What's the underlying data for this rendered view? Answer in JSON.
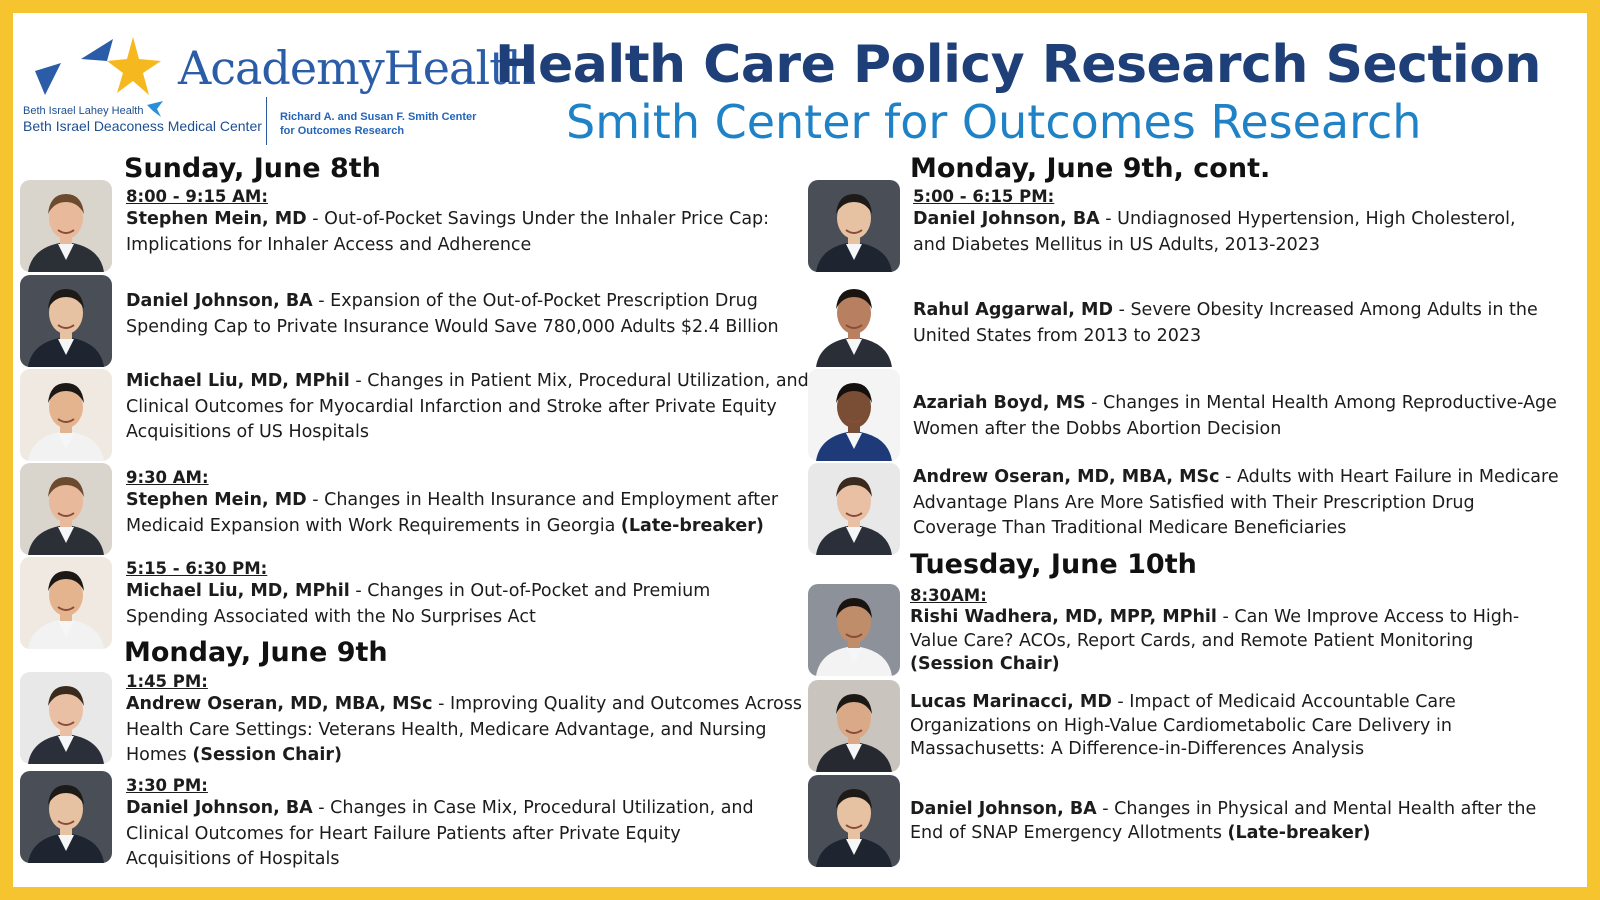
{
  "header": {
    "org_logo": "AcademyHealth",
    "hospital_line1": "Beth Israel Lahey Health",
    "hospital_line2": "Beth Israel Deaconess Medical Center",
    "center_logo_line1": "Richard A. and Susan F. Smith Center",
    "center_logo_line2": "for Outcomes Research",
    "title": "Health Care Policy Research Section",
    "subtitle": "Smith Center for Outcomes Research"
  },
  "colors": {
    "border": "#f6c42e",
    "title": "#1e3f78",
    "subtitle": "#1f82c7",
    "logo_blue": "#2b5ca8",
    "logo_gold": "#f6b81f"
  },
  "days": {
    "sun": "Sunday, June 8th",
    "mon": "Monday, June 9th",
    "mon_cont": "Monday, June 9th, cont.",
    "tue": "Tuesday, June 10th"
  },
  "entries": [
    {
      "time": "8:00 - 9:15 AM:",
      "name": "Stephen Mein, MD",
      "title": " - Out-of-Pocket Savings Under the Inhaler Price Cap: Implications for Inhaler Access and Adherence",
      "tag": ""
    },
    {
      "time": "",
      "name": "Daniel Johnson, BA",
      "title": " - Expansion of the Out-of-Pocket Prescription Drug Spending Cap to Private Insurance Would Save 780,000 Adults $2.4 Billion",
      "tag": ""
    },
    {
      "time": "",
      "name": "Michael Liu, MD, MPhil",
      "title": " - Changes in Patient Mix, Procedural Utilization, and Clinical Outcomes for Myocardial Infarction and Stroke after Private Equity Acquisitions of US Hospitals",
      "tag": ""
    },
    {
      "time": "9:30 AM:",
      "name": "Stephen Mein, MD",
      "title": " - Changes in Health Insurance and Employment after Medicaid Expansion with Work Requirements in Georgia ",
      "tag": "(Late-breaker)"
    },
    {
      "time": "5:15 - 6:30 PM:",
      "name": "Michael Liu, MD,  MPhil",
      "title": " - Changes in Out-of-Pocket and Premium Spending Associated with the No Surprises Act",
      "tag": ""
    },
    {
      "time": "1:45 PM:",
      "name": "Andrew Oseran, MD, MBA, MSc",
      "title": " - Improving Quality and Outcomes Across Health Care Settings: Veterans Health, Medicare Advantage, and Nursing Homes ",
      "tag": "(Session Chair)"
    },
    {
      "time": "3:30 PM:",
      "name": "Daniel Johnson, BA",
      "title": " - Changes in Case Mix, Procedural Utilization, and Clinical Outcomes for Heart Failure Patients after Private Equity Acquisitions of Hospitals",
      "tag": ""
    },
    {
      "time": "5:00 - 6:15 PM:",
      "name": "Daniel Johnson, BA",
      "title": " - Undiagnosed Hypertension, High Cholesterol, and Diabetes Mellitus in US Adults, 2013-2023",
      "tag": ""
    },
    {
      "time": "",
      "name": "Rahul Aggarwal, MD",
      "title": " - Severe Obesity Increased Among Adults in the United States from 2013 to 2023",
      "tag": ""
    },
    {
      "time": "",
      "name": "Azariah Boyd, MS",
      "title": " - Changes in Mental Health Among Reproductive-Age Women after the Dobbs Abortion Decision",
      "tag": ""
    },
    {
      "time": "",
      "name": "Andrew Oseran, MD, MBA, MSc",
      "title": " - Adults with Heart Failure in Medicare Advantage Plans Are More Satisfied with Their Prescription Drug Coverage Than Traditional Medicare Beneficiaries",
      "tag": ""
    },
    {
      "time": "8:30AM: ",
      "name": "Rishi Wadhera, MD, MPP, MPhil",
      "title": " - Can We Improve Access to High-Value Care? ACOs, Report Cards, and Remote Patient Monitoring ",
      "tag": "(Session Chair)"
    },
    {
      "time": "",
      "name": "Lucas Marinacci, MD",
      "title": " - Impact of Medicaid Accountable Care Organizations on High-Value Cardiometabolic Care Delivery in Massachusetts: A Difference-in-Differences Analysis",
      "tag": ""
    },
    {
      "time": "",
      "name": "Daniel Johnson, BA",
      "title": " - Changes in Physical and Mental Health after the End of SNAP Emergency Allotments ",
      "tag": "(Late-breaker)"
    }
  ]
}
